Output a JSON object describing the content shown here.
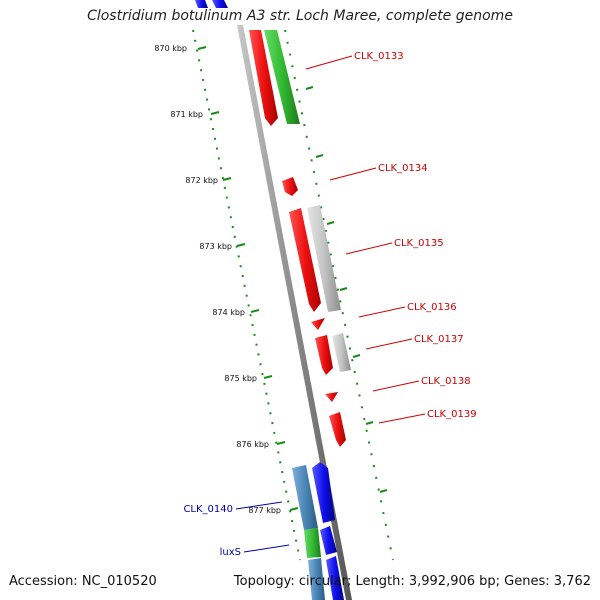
{
  "title": "Clostridium botulinum A3 str. Loch Maree, complete genome",
  "footer": {
    "accession": "Accession: NC_010520",
    "topology": "Topology: circular; Length: 3,992,906 bp; Genes: 3,762"
  },
  "colors": {
    "forward_cds": "#ee1111",
    "other_cds": "#1111ee",
    "feature_green": "#33bb33",
    "feature_grey": "#c0c0c0",
    "feature_steel": "#4a86b8",
    "backbone": "#808080",
    "tick": "#1a8a1a",
    "label_red": "#cc0000",
    "label_blue": "#0000aa"
  },
  "scale": {
    "ticks": [
      "870 kbp",
      "871 kbp",
      "872 kbp",
      "873 kbp",
      "874 kbp",
      "875 kbp",
      "876 kbp",
      "877 kbp"
    ]
  },
  "genes": [
    {
      "name": "CLK_0133",
      "color": "red"
    },
    {
      "name": "CLK_0134",
      "color": "red"
    },
    {
      "name": "CLK_0135",
      "color": "red"
    },
    {
      "name": "CLK_0136",
      "color": "red"
    },
    {
      "name": "CLK_0137",
      "color": "red"
    },
    {
      "name": "CLK_0138",
      "color": "red"
    },
    {
      "name": "CLK_0139",
      "color": "red"
    },
    {
      "name": "CLK_0140",
      "color": "blue"
    },
    {
      "name": "luxS",
      "color": "blue"
    }
  ]
}
